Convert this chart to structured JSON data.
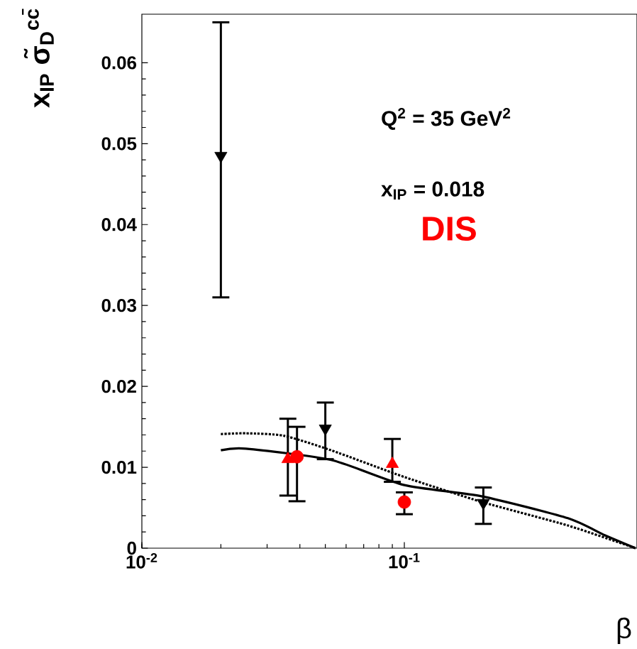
{
  "chart_data": {
    "type": "scatter",
    "xlabel": "β",
    "ylabel": "x$_{IP}$ σ̃$_{D}$$^{cc̄}$",
    "log": "x",
    "xlim": [
      0.01,
      0.77
    ],
    "ylim": [
      0,
      0.066
    ],
    "xticks": [
      {
        "value": 0.01,
        "label": "10$^{-2}$"
      },
      {
        "value": 0.1,
        "label": "10$^{-1}$"
      }
    ],
    "yticks": [
      0,
      0.01,
      0.02,
      0.03,
      0.04,
      0.05,
      0.06
    ],
    "annotations": [
      "Q$^{2}$ = 35 GeV$^{2}$",
      "x$_{IP}$ = 0.018",
      "DIS"
    ],
    "series": [
      {
        "color": "#000000",
        "marker": "triangle-down",
        "x": [
          0.02,
          0.05,
          0.2
        ],
        "values": [
          0.0485,
          0.0148,
          0.0056
        ],
        "errors": [
          [
            0.031,
            0.065
          ],
          [
            0.011,
            0.018
          ],
          [
            0.003,
            0.0075
          ]
        ]
      },
      {
        "color": "#ff0000",
        "marker": "triangle",
        "x": [
          0.036,
          0.09
        ],
        "values": [
          0.011,
          0.0104
        ],
        "errors": [
          [
            0.0065,
            0.016
          ],
          [
            0.0082,
            0.0135
          ]
        ]
      },
      {
        "color": "#ff0000",
        "marker": "circle",
        "x": [
          0.039,
          0.1
        ],
        "values": [
          0.0113,
          0.0057
        ],
        "errors": [
          [
            0.0058,
            0.015
          ],
          [
            0.0042,
            0.0069
          ]
        ]
      },
      {
        "type": "line",
        "color": "#000000",
        "line_style": "solid",
        "marker": "none",
        "x": [
          0.02,
          0.0249,
          0.0526,
          0.1,
          0.198,
          0.42,
          0.58,
          0.76
        ],
        "values": [
          0.0121,
          0.0123,
          0.0109,
          0.0078,
          0.0064,
          0.0037,
          0.0016,
          0
        ]
      },
      {
        "type": "line",
        "color": "#000000",
        "line_style": "dotted",
        "marker": "none",
        "x": [
          0.02,
          0.0249,
          0.0347,
          0.0526,
          0.1,
          0.198,
          0.42,
          0.76
        ],
        "values": [
          0.0141,
          0.0142,
          0.0139,
          0.0121,
          0.0088,
          0.0057,
          0.0028,
          0
        ]
      }
    ]
  }
}
